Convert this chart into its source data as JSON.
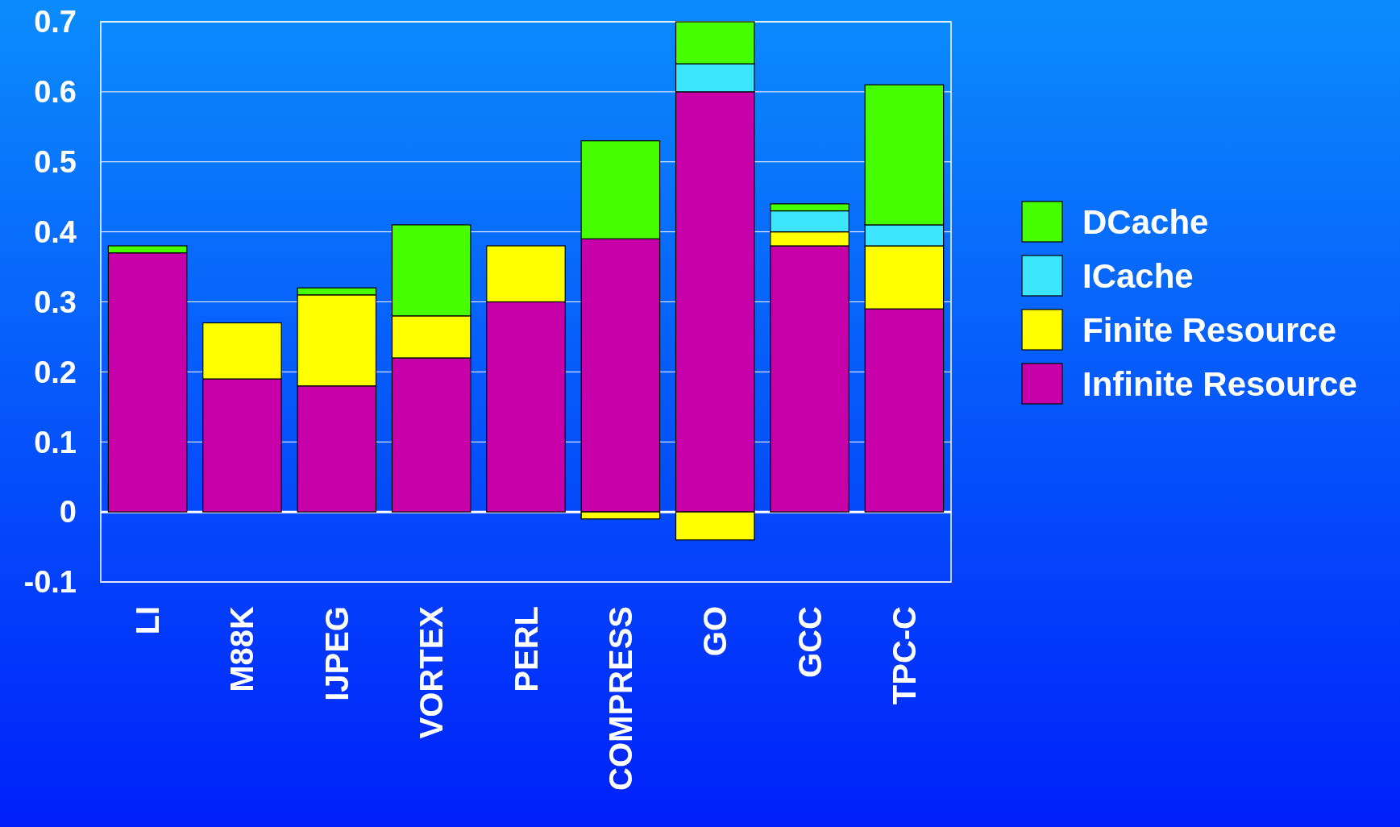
{
  "chart_data": {
    "type": "bar",
    "stacked": true,
    "categories": [
      "LI",
      "M88K",
      "IJPEG",
      "VORTEX",
      "PERL",
      "COMPRESS",
      "GO",
      "GCC",
      "TPC-C"
    ],
    "series": [
      {
        "name": "Infinite Resource",
        "color": "#c800aa",
        "values": [
          0.37,
          0.19,
          0.18,
          0.22,
          0.3,
          0.39,
          0.6,
          0.38,
          0.29
        ]
      },
      {
        "name": "Finite Resource",
        "color": "#ffff00",
        "values": [
          0,
          0.08,
          0.13,
          0.06,
          0.08,
          -0.01,
          -0.04,
          0.02,
          0.09
        ]
      },
      {
        "name": "ICache",
        "color": "#3ce6ff",
        "values": [
          0,
          0,
          0,
          0,
          0,
          0,
          0.04,
          0.03,
          0.03
        ]
      },
      {
        "name": "DCache",
        "color": "#46ff00",
        "values": [
          0.01,
          0,
          0.01,
          0.13,
          0,
          0.14,
          0.06,
          0.01,
          0.2
        ]
      }
    ],
    "ylim": [
      -0.1,
      0.7
    ],
    "yticks": [
      -0.1,
      0,
      0.1,
      0.2,
      0.3,
      0.4,
      0.5,
      0.6,
      0.7
    ],
    "grid": "y",
    "legend": "right"
  }
}
